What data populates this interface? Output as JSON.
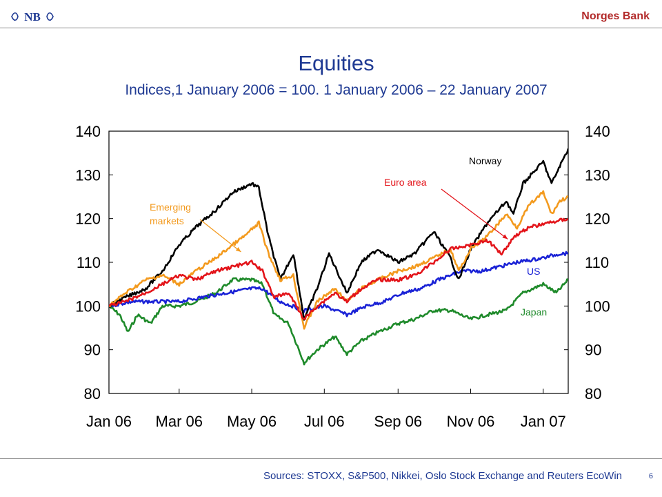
{
  "header": {
    "brand": "Norges Bank",
    "logo_text": "NB"
  },
  "footer": {
    "sources": "Sources: STOXX, S&P500, Nikkei, Oslo Stock Exchange and Reuters EcoWin",
    "page_number": "6"
  },
  "colors": {
    "title": "#1f3a93",
    "brand": "#b22a2a",
    "norway": "#000000",
    "euro_area": "#e3141a",
    "emerging_markets": "#f39a1e",
    "us": "#1a22d6",
    "japan": "#1e8a2a"
  },
  "chart_data": {
    "type": "line",
    "title": "Equities",
    "subtitle": "Indices,1 January 2006 = 100. 1 January 2006 – 22 January 2007",
    "xlabel": "",
    "ylabel": "",
    "ylim": [
      80,
      140
    ],
    "yticks": [
      80,
      90,
      100,
      110,
      120,
      130,
      140
    ],
    "xlim": [
      "2006-01-01",
      "2007-01-22"
    ],
    "xticks": [
      {
        "date": "2006-01-01",
        "label": "Jan 06"
      },
      {
        "date": "2006-03-01",
        "label": "Mar 06"
      },
      {
        "date": "2006-05-01",
        "label": "May 06"
      },
      {
        "date": "2006-07-01",
        "label": "Jul 06"
      },
      {
        "date": "2006-09-01",
        "label": "Sep 06"
      },
      {
        "date": "2006-11-01",
        "label": "Nov 06"
      },
      {
        "date": "2007-01-01",
        "label": "Jan 07"
      }
    ],
    "grid": false,
    "legend": "none",
    "series": [
      {
        "name": "Norway",
        "key": "norway",
        "points": [
          [
            "2006-01-01",
            100
          ],
          [
            "2006-01-15",
            102
          ],
          [
            "2006-02-01",
            104
          ],
          [
            "2006-02-15",
            108
          ],
          [
            "2006-03-01",
            114
          ],
          [
            "2006-03-15",
            118
          ],
          [
            "2006-04-01",
            122
          ],
          [
            "2006-04-15",
            126
          ],
          [
            "2006-05-01",
            128
          ],
          [
            "2006-05-07",
            127
          ],
          [
            "2006-05-15",
            116
          ],
          [
            "2006-05-25",
            106
          ],
          [
            "2006-06-05",
            112
          ],
          [
            "2006-06-14",
            97
          ],
          [
            "2006-06-25",
            104
          ],
          [
            "2006-07-05",
            112
          ],
          [
            "2006-07-20",
            103
          ],
          [
            "2006-08-01",
            110
          ],
          [
            "2006-08-15",
            113
          ],
          [
            "2006-09-01",
            110
          ],
          [
            "2006-09-15",
            112
          ],
          [
            "2006-10-01",
            117
          ],
          [
            "2006-10-15",
            111
          ],
          [
            "2006-10-22",
            106
          ],
          [
            "2006-11-01",
            113
          ],
          [
            "2006-11-15",
            119
          ],
          [
            "2006-12-01",
            124
          ],
          [
            "2006-12-07",
            121
          ],
          [
            "2006-12-15",
            128
          ],
          [
            "2007-01-01",
            133
          ],
          [
            "2007-01-08",
            128
          ],
          [
            "2007-01-15",
            132
          ],
          [
            "2007-01-22",
            136
          ]
        ]
      },
      {
        "name": "Euro area",
        "key": "euro_area",
        "points": [
          [
            "2006-01-01",
            100
          ],
          [
            "2006-01-15",
            101
          ],
          [
            "2006-02-01",
            103
          ],
          [
            "2006-02-15",
            105
          ],
          [
            "2006-03-01",
            107
          ],
          [
            "2006-03-15",
            106
          ],
          [
            "2006-04-01",
            108
          ],
          [
            "2006-04-15",
            109
          ],
          [
            "2006-05-01",
            110
          ],
          [
            "2006-05-10",
            108
          ],
          [
            "2006-05-20",
            102
          ],
          [
            "2006-06-01",
            103
          ],
          [
            "2006-06-14",
            97
          ],
          [
            "2006-06-25",
            100
          ],
          [
            "2006-07-10",
            103
          ],
          [
            "2006-07-20",
            101
          ],
          [
            "2006-08-01",
            104
          ],
          [
            "2006-08-15",
            106
          ],
          [
            "2006-09-01",
            106
          ],
          [
            "2006-09-15",
            107
          ],
          [
            "2006-10-01",
            110
          ],
          [
            "2006-10-15",
            113
          ],
          [
            "2006-11-01",
            114
          ],
          [
            "2006-11-15",
            115
          ],
          [
            "2006-11-27",
            112
          ],
          [
            "2006-12-08",
            116
          ],
          [
            "2006-12-20",
            118
          ],
          [
            "2007-01-05",
            119
          ],
          [
            "2007-01-22",
            120
          ]
        ]
      },
      {
        "name": "Emerging markets",
        "key": "emerging_markets",
        "points": [
          [
            "2006-01-01",
            100
          ],
          [
            "2006-01-15",
            103
          ],
          [
            "2006-02-01",
            106
          ],
          [
            "2006-02-15",
            107
          ],
          [
            "2006-03-01",
            105
          ],
          [
            "2006-03-15",
            108
          ],
          [
            "2006-04-01",
            111
          ],
          [
            "2006-04-15",
            114
          ],
          [
            "2006-04-25",
            116
          ],
          [
            "2006-05-07",
            119
          ],
          [
            "2006-05-15",
            112
          ],
          [
            "2006-05-25",
            106
          ],
          [
            "2006-06-05",
            107
          ],
          [
            "2006-06-14",
            95
          ],
          [
            "2006-06-25",
            101
          ],
          [
            "2006-07-10",
            104
          ],
          [
            "2006-07-20",
            101
          ],
          [
            "2006-08-01",
            104
          ],
          [
            "2006-08-15",
            106
          ],
          [
            "2006-09-01",
            108
          ],
          [
            "2006-09-15",
            109
          ],
          [
            "2006-10-01",
            111
          ],
          [
            "2006-10-15",
            113
          ],
          [
            "2006-10-22",
            108
          ],
          [
            "2006-11-01",
            113
          ],
          [
            "2006-11-15",
            116
          ],
          [
            "2006-12-01",
            121
          ],
          [
            "2006-12-10",
            118
          ],
          [
            "2006-12-20",
            123
          ],
          [
            "2007-01-01",
            126
          ],
          [
            "2007-01-08",
            121
          ],
          [
            "2007-01-15",
            124
          ],
          [
            "2007-01-22",
            125
          ]
        ]
      },
      {
        "name": "US",
        "key": "us",
        "points": [
          [
            "2006-01-01",
            100
          ],
          [
            "2006-01-20",
            101
          ],
          [
            "2006-02-10",
            101
          ],
          [
            "2006-03-01",
            101
          ],
          [
            "2006-03-20",
            102
          ],
          [
            "2006-04-10",
            103
          ],
          [
            "2006-05-01",
            104
          ],
          [
            "2006-05-10",
            104
          ],
          [
            "2006-05-25",
            101
          ],
          [
            "2006-06-14",
            99
          ],
          [
            "2006-07-01",
            100
          ],
          [
            "2006-07-20",
            98
          ],
          [
            "2006-08-05",
            100
          ],
          [
            "2006-08-20",
            101
          ],
          [
            "2006-09-05",
            103
          ],
          [
            "2006-09-20",
            104
          ],
          [
            "2006-10-05",
            106
          ],
          [
            "2006-10-25",
            108
          ],
          [
            "2006-11-10",
            108
          ],
          [
            "2006-11-25",
            109
          ],
          [
            "2006-12-10",
            110
          ],
          [
            "2007-01-01",
            111
          ],
          [
            "2007-01-15",
            112
          ],
          [
            "2007-01-22",
            112
          ]
        ]
      },
      {
        "name": "Japan",
        "key": "japan",
        "points": [
          [
            "2006-01-01",
            100
          ],
          [
            "2006-01-10",
            98
          ],
          [
            "2006-01-17",
            94
          ],
          [
            "2006-01-25",
            98
          ],
          [
            "2006-02-05",
            96
          ],
          [
            "2006-02-15",
            100
          ],
          [
            "2006-03-01",
            100
          ],
          [
            "2006-03-15",
            101
          ],
          [
            "2006-04-01",
            103
          ],
          [
            "2006-04-15",
            106
          ],
          [
            "2006-05-01",
            106
          ],
          [
            "2006-05-10",
            105
          ],
          [
            "2006-05-20",
            98
          ],
          [
            "2006-06-01",
            96
          ],
          [
            "2006-06-14",
            87
          ],
          [
            "2006-06-25",
            90
          ],
          [
            "2006-07-10",
            93
          ],
          [
            "2006-07-20",
            89
          ],
          [
            "2006-08-01",
            92
          ],
          [
            "2006-08-15",
            94
          ],
          [
            "2006-09-01",
            96
          ],
          [
            "2006-09-15",
            97
          ],
          [
            "2006-10-01",
            99
          ],
          [
            "2006-10-15",
            99
          ],
          [
            "2006-11-01",
            97
          ],
          [
            "2006-11-15",
            98
          ],
          [
            "2006-12-01",
            99
          ],
          [
            "2006-12-15",
            103
          ],
          [
            "2007-01-01",
            105
          ],
          [
            "2007-01-12",
            103
          ],
          [
            "2007-01-22",
            106
          ]
        ]
      }
    ],
    "annotations": [
      {
        "text": "Norway",
        "series": "norway"
      },
      {
        "text": "Euro area",
        "series": "euro_area",
        "arrow_to": [
          "2006-12-01",
          115
        ]
      },
      {
        "text": "Emerging\nmarkets",
        "series": "emerging_markets",
        "arrow_to": [
          "2006-04-22",
          113
        ]
      },
      {
        "text": "US",
        "series": "us"
      },
      {
        "text": "Japan",
        "series": "japan"
      }
    ]
  }
}
